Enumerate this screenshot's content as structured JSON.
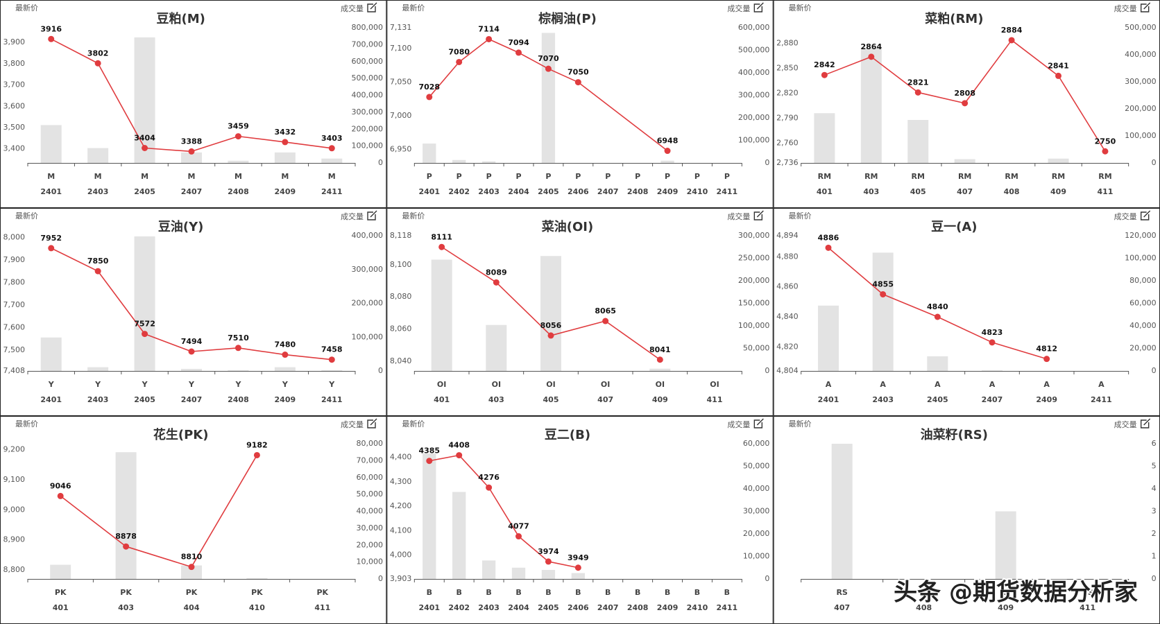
{
  "watermark": "头条 @期货数据分析家",
  "chart_data": [
    {
      "type": "bar-line",
      "title": "豆粕(M)",
      "symbol": "M",
      "categories": [
        "2401",
        "2403",
        "2405",
        "2407",
        "2408",
        "2409",
        "2411"
      ],
      "series": [
        {
          "name": "成交量",
          "type": "bar",
          "axis": "y2",
          "color": "#e3e3e3",
          "values": [
            224000,
            88000,
            743000,
            62000,
            13000,
            62000,
            26000
          ]
        },
        {
          "name": "最新价",
          "type": "line",
          "color": "#e03c3f",
          "values": [
            3916,
            3802,
            3404,
            3388,
            3459,
            3432,
            3403
          ]
        }
      ],
      "ylim": [
        3334,
        3969
      ],
      "yticks": [
        {
          "value": 3400,
          "label": "3,400"
        },
        {
          "value": 3500,
          "label": "3,500"
        },
        {
          "value": 3600,
          "label": "3,600"
        },
        {
          "value": 3700,
          "label": "3,700"
        },
        {
          "value": 3800,
          "label": "3,800"
        },
        {
          "value": 3900,
          "label": "3,900"
        }
      ],
      "y2lim": [
        0,
        800000
      ],
      "y2ticks": [
        0,
        {
          "value": 100000,
          "label": "100,000"
        },
        {
          "value": 200000,
          "label": "200,000"
        },
        {
          "value": 300000,
          "label": "300,000"
        },
        {
          "value": 400000,
          "label": "400,000"
        },
        {
          "value": 500000,
          "label": "500,000"
        },
        {
          "value": 600000,
          "label": "600,000"
        },
        {
          "value": 700000,
          "label": "700,000"
        },
        {
          "value": 800000,
          "label": "800,000"
        }
      ]
    },
    {
      "type": "bar-line",
      "title": "棕榈油(P)",
      "symbol": "P",
      "categories": [
        "2401",
        "2402",
        "2403",
        "2404",
        "2405",
        "2406",
        "2407",
        "2408",
        "2409",
        "2410",
        "2411"
      ],
      "series": [
        {
          "name": "成交量",
          "type": "bar",
          "axis": "y2",
          "color": "#e3e3e3",
          "values": [
            86000,
            13000,
            7000,
            0,
            577000,
            0,
            0,
            0,
            10000,
            0,
            0
          ]
        },
        {
          "name": "最新价",
          "type": "line",
          "color": "#e03c3f",
          "values": [
            7028,
            7080,
            7114,
            7094,
            7070,
            7050,
            null,
            null,
            6948,
            null,
            null
          ]
        }
      ],
      "ylim": [
        6930,
        7131
      ],
      "yticks": [
        {
          "value": 6950,
          "label": "6,950"
        },
        {
          "value": 7000,
          "label": "7,000"
        },
        {
          "value": 7050,
          "label": "7,050"
        },
        {
          "value": 7100,
          "label": "7,100"
        },
        {
          "value": 7131,
          "label": "7,131"
        }
      ],
      "y2lim": [
        0,
        600000
      ],
      "y2ticks": [
        0,
        {
          "value": 100000,
          "label": "100,000"
        },
        {
          "value": 200000,
          "label": "200,000"
        },
        {
          "value": 300000,
          "label": "300,000"
        },
        {
          "value": 400000,
          "label": "400,000"
        },
        {
          "value": 500000,
          "label": "500,000"
        },
        {
          "value": 600000,
          "label": "600,000"
        }
      ]
    },
    {
      "type": "bar-line",
      "title": "菜粕(RM)",
      "symbol": "RM",
      "categories": [
        "401",
        "403",
        "405",
        "407",
        "408",
        "409",
        "411"
      ],
      "series": [
        {
          "name": "成交量",
          "type": "bar",
          "axis": "y2",
          "color": "#e3e3e3",
          "values": [
            184000,
            426000,
            159000,
            14000,
            0,
            16000,
            0
          ]
        },
        {
          "name": "最新价",
          "type": "line",
          "color": "#e03c3f",
          "values": [
            2842,
            2864,
            2821,
            2808,
            2884,
            2841,
            2750
          ]
        }
      ],
      "ylim": [
        2736,
        2899
      ],
      "yticks": [
        {
          "value": 2736,
          "label": "2,736"
        },
        {
          "value": 2760,
          "label": "2,760"
        },
        {
          "value": 2790,
          "label": "2,790"
        },
        {
          "value": 2820,
          "label": "2,820"
        },
        {
          "value": 2850,
          "label": "2,850"
        },
        {
          "value": 2880,
          "label": "2,880"
        }
      ],
      "y2lim": [
        0,
        500000
      ],
      "y2ticks": [
        0,
        {
          "value": 100000,
          "label": "100,000"
        },
        {
          "value": 200000,
          "label": "200,000"
        },
        {
          "value": 300000,
          "label": "300,000"
        },
        {
          "value": 400000,
          "label": "400,000"
        },
        {
          "value": 500000,
          "label": "500,000"
        }
      ]
    },
    {
      "type": "bar-line",
      "title": "豆油(Y)",
      "symbol": "Y",
      "categories": [
        "2401",
        "2403",
        "2405",
        "2407",
        "2408",
        "2409",
        "2411"
      ],
      "series": [
        {
          "name": "成交量",
          "type": "bar",
          "axis": "y2",
          "color": "#e3e3e3",
          "values": [
            99000,
            11000,
            398000,
            6000,
            2000,
            11000,
            2000
          ]
        },
        {
          "name": "最新价",
          "type": "line",
          "color": "#e03c3f",
          "values": [
            7952,
            7850,
            7572,
            7494,
            7510,
            7480,
            7458
          ]
        }
      ],
      "ylim": [
        7408,
        8007
      ],
      "yticks": [
        {
          "value": 7408,
          "label": "7,408"
        },
        {
          "value": 7500,
          "label": "7,500"
        },
        {
          "value": 7600,
          "label": "7,600"
        },
        {
          "value": 7700,
          "label": "7,700"
        },
        {
          "value": 7800,
          "label": "7,800"
        },
        {
          "value": 7900,
          "label": "7,900"
        },
        {
          "value": 8000,
          "label": "8,000"
        }
      ],
      "y2lim": [
        0,
        400000
      ],
      "y2ticks": [
        0,
        {
          "value": 100000,
          "label": "100,000"
        },
        {
          "value": 200000,
          "label": "200,000"
        },
        {
          "value": 300000,
          "label": "300,000"
        },
        {
          "value": 400000,
          "label": "400,000"
        }
      ]
    },
    {
      "type": "bar-line",
      "title": "菜油(OI)",
      "symbol": "OI",
      "categories": [
        "401",
        "403",
        "405",
        "407",
        "409",
        "411"
      ],
      "series": [
        {
          "name": "成交量",
          "type": "bar",
          "axis": "y2",
          "color": "#e3e3e3",
          "values": [
            247000,
            102000,
            255000,
            0,
            5000,
            0
          ]
        },
        {
          "name": "最新价",
          "type": "line",
          "color": "#e03c3f",
          "values": [
            8111,
            8089,
            8056,
            8065,
            8041,
            null
          ]
        }
      ],
      "ylim": [
        8034,
        8118
      ],
      "yticks": [
        {
          "value": 8040,
          "label": "8,040"
        },
        {
          "value": 8060,
          "label": "8,060"
        },
        {
          "value": 8080,
          "label": "8,080"
        },
        {
          "value": 8100,
          "label": "8,100"
        },
        {
          "value": 8118,
          "label": "8,118"
        }
      ],
      "y2lim": [
        0,
        300000
      ],
      "y2ticks": [
        0,
        {
          "value": 50000,
          "label": "50,000"
        },
        {
          "value": 100000,
          "label": "100,000"
        },
        {
          "value": 150000,
          "label": "150,000"
        },
        {
          "value": 200000,
          "label": "200,000"
        },
        {
          "value": 250000,
          "label": "250,000"
        },
        {
          "value": 300000,
          "label": "300,000"
        }
      ]
    },
    {
      "type": "bar-line",
      "title": "豆一(A)",
      "symbol": "A",
      "categories": [
        "2401",
        "2403",
        "2405",
        "2407",
        "2409",
        "2411"
      ],
      "series": [
        {
          "name": "成交量",
          "type": "bar",
          "axis": "y2",
          "color": "#e3e3e3",
          "values": [
            58000,
            105000,
            13000,
            500,
            0,
            0
          ]
        },
        {
          "name": "最新价",
          "type": "line",
          "color": "#e03c3f",
          "values": [
            4886,
            4855,
            4840,
            4823,
            4812,
            null
          ]
        }
      ],
      "ylim": [
        4804,
        4894
      ],
      "yticks": [
        {
          "value": 4804,
          "label": "4,804"
        },
        {
          "value": 4820,
          "label": "4,820"
        },
        {
          "value": 4840,
          "label": "4,840"
        },
        {
          "value": 4860,
          "label": "4,860"
        },
        {
          "value": 4880,
          "label": "4,880"
        },
        {
          "value": 4894,
          "label": "4,894"
        }
      ],
      "y2lim": [
        0,
        120000
      ],
      "y2ticks": [
        0,
        {
          "value": 20000,
          "label": "20,000"
        },
        {
          "value": 40000,
          "label": "40,000"
        },
        {
          "value": 60000,
          "label": "60,000"
        },
        {
          "value": 80000,
          "label": "80,000"
        },
        {
          "value": 100000,
          "label": "100,000"
        },
        {
          "value": 120000,
          "label": "120,000"
        }
      ]
    },
    {
      "type": "bar-line",
      "title": "花生(PK)",
      "symbol": "PK",
      "categories": [
        "401",
        "403",
        "404",
        "410",
        "411"
      ],
      "series": [
        {
          "name": "成交量",
          "type": "bar",
          "axis": "y2",
          "color": "#e3e3e3",
          "values": [
            8400,
            75000,
            8000,
            500,
            0
          ]
        },
        {
          "name": "最新价",
          "type": "line",
          "color": "#e03c3f",
          "values": [
            9046,
            8878,
            8810,
            9182,
            null
          ]
        }
      ],
      "ylim": [
        8770,
        9220
      ],
      "yticks": [
        {
          "value": 8800,
          "label": "8,800"
        },
        {
          "value": 8900,
          "label": "8,900"
        },
        {
          "value": 9000,
          "label": "9,000"
        },
        {
          "value": 9100,
          "label": "9,100"
        },
        {
          "value": 9200,
          "label": "9,200"
        }
      ],
      "y2lim": [
        0,
        80000
      ],
      "y2ticks": [
        0,
        {
          "value": 10000,
          "label": "10,000"
        },
        {
          "value": 20000,
          "label": "20,000"
        },
        {
          "value": 30000,
          "label": "30,000"
        },
        {
          "value": 40000,
          "label": "40,000"
        },
        {
          "value": 50000,
          "label": "50,000"
        },
        {
          "value": 60000,
          "label": "60,000"
        },
        {
          "value": 70000,
          "label": "70,000"
        },
        {
          "value": 80000,
          "label": "80,000"
        }
      ]
    },
    {
      "type": "bar-line",
      "title": "豆二(B)",
      "symbol": "B",
      "categories": [
        "2401",
        "2402",
        "2403",
        "2404",
        "2405",
        "2406",
        "2407",
        "2408",
        "2409",
        "2410",
        "2411"
      ],
      "series": [
        {
          "name": "成交量",
          "type": "bar",
          "axis": "y2",
          "color": "#e3e3e3",
          "values": [
            55700,
            38600,
            8200,
            5000,
            4000,
            2600,
            0,
            0,
            0,
            0,
            0
          ]
        },
        {
          "name": "最新价",
          "type": "line",
          "color": "#e03c3f",
          "values": [
            4385,
            4408,
            4276,
            4077,
            3974,
            3949,
            null,
            null,
            null,
            null,
            null
          ]
        }
      ],
      "ylim": [
        3903,
        4455
      ],
      "yticks": [
        {
          "value": 3903,
          "label": "3,903"
        },
        {
          "value": 4000,
          "label": "4,000"
        },
        {
          "value": 4100,
          "label": "4,100"
        },
        {
          "value": 4200,
          "label": "4,200"
        },
        {
          "value": 4300,
          "label": "4,300"
        },
        {
          "value": 4400,
          "label": "4,400"
        }
      ],
      "y2lim": [
        0,
        60000
      ],
      "y2ticks": [
        0,
        {
          "value": 10000,
          "label": "10,000"
        },
        {
          "value": 20000,
          "label": "20,000"
        },
        {
          "value": 30000,
          "label": "30,000"
        },
        {
          "value": 40000,
          "label": "40,000"
        },
        {
          "value": 50000,
          "label": "50,000"
        },
        {
          "value": 60000,
          "label": "60,000"
        }
      ]
    },
    {
      "type": "bar-line",
      "title": "油菜籽(RS)",
      "symbol": "RS",
      "categories": [
        "407",
        "408",
        "409",
        "411"
      ],
      "series": [
        {
          "name": "成交量",
          "type": "bar",
          "axis": "y2",
          "color": "#e3e3e3",
          "values": [
            6,
            0,
            3,
            0
          ]
        },
        {
          "name": "最新价",
          "type": "line",
          "color": "#e03c3f",
          "values": [
            null,
            null,
            null,
            null
          ]
        }
      ],
      "y2lim": [
        0,
        6
      ],
      "y2ticks": [
        0,
        1,
        2,
        3,
        4,
        5,
        6
      ]
    }
  ]
}
